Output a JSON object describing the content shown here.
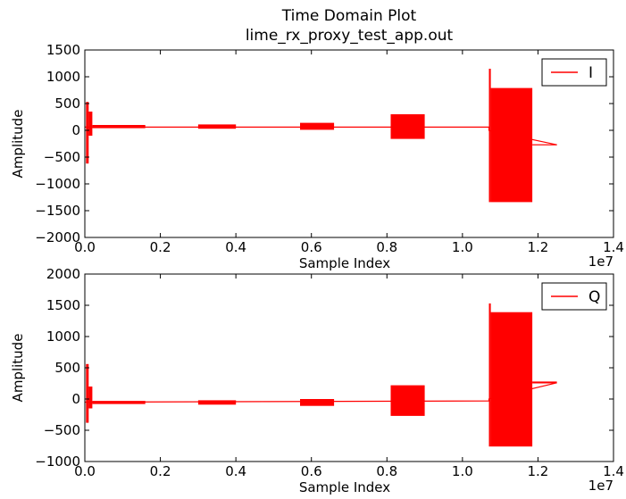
{
  "figure": {
    "title_line1": "Time Domain Plot",
    "title_line2": "lime_rx_proxy_test_app.out"
  },
  "chart_data": [
    {
      "type": "line",
      "title": "Time Domain Plot\nlime_rx_proxy_test_app.out",
      "xlabel": "Sample Index",
      "ylabel": "Amplitude",
      "x_scale_label": "1e7",
      "xlim": [
        0,
        14000000
      ],
      "ylim": [
        -2000,
        1500
      ],
      "xticks": [
        0,
        2000000,
        4000000,
        6000000,
        8000000,
        10000000,
        12000000,
        14000000
      ],
      "xtick_labels": [
        "0.0",
        "0.2",
        "0.4",
        "0.6",
        "0.8",
        "1.0",
        "1.2",
        "1.4"
      ],
      "yticks": [
        -2000,
        -1500,
        -1000,
        -500,
        0,
        500,
        1000,
        1500
      ],
      "ytick_labels": [
        "−2000",
        "−1500",
        "−1000",
        "−500",
        "0",
        "500",
        "1000",
        "1500"
      ],
      "grid": false,
      "legend_position": "top-right",
      "series": [
        {
          "name": "I",
          "color": "#ff0000",
          "baseline": [
            [
              0,
              60
            ],
            [
              10700000,
              60
            ],
            [
              10700000,
              0
            ],
            [
              12500000,
              -270
            ]
          ],
          "bursts": [
            {
              "x_start": 30000,
              "x_end": 100000,
              "y_min": -620,
              "y_max": 530
            },
            {
              "x_start": 100000,
              "x_end": 200000,
              "y_min": -100,
              "y_max": 350
            },
            {
              "x_start": 200000,
              "x_end": 1600000,
              "y_min": 40,
              "y_max": 100
            },
            {
              "x_start": 3000000,
              "x_end": 4000000,
              "y_min": 30,
              "y_max": 110
            },
            {
              "x_start": 5700000,
              "x_end": 6600000,
              "y_min": 10,
              "y_max": 140
            },
            {
              "x_start": 8100000,
              "x_end": 9000000,
              "y_min": -160,
              "y_max": 300
            },
            {
              "x_start": 10700000,
              "x_end": 10750000,
              "y_min": -1340,
              "y_max": 1150
            },
            {
              "x_start": 10750000,
              "x_end": 11850000,
              "y_min": -1340,
              "y_max": 790
            },
            {
              "x_start": 11850000,
              "x_end": 12500000,
              "y_min": -280,
              "y_max": -260
            }
          ]
        }
      ]
    },
    {
      "type": "line",
      "xlabel": "Sample Index",
      "ylabel": "Amplitude",
      "x_scale_label": "1e7",
      "xlim": [
        0,
        14000000
      ],
      "ylim": [
        -1000,
        2000
      ],
      "xticks": [
        0,
        2000000,
        4000000,
        6000000,
        8000000,
        10000000,
        12000000,
        14000000
      ],
      "xtick_labels": [
        "0.0",
        "0.2",
        "0.4",
        "0.6",
        "0.8",
        "1.0",
        "1.2",
        "1.4"
      ],
      "yticks": [
        -1000,
        -500,
        0,
        500,
        1000,
        1500,
        2000
      ],
      "ytick_labels": [
        "−1000",
        "−500",
        "0",
        "500",
        "1000",
        "1500",
        "2000"
      ],
      "grid": false,
      "legend_position": "top-right",
      "series": [
        {
          "name": "Q",
          "color": "#ff0000",
          "baseline": [
            [
              0,
              -50
            ],
            [
              10700000,
              -30
            ],
            [
              10700000,
              0
            ],
            [
              12500000,
              260
            ]
          ],
          "bursts": [
            {
              "x_start": 30000,
              "x_end": 100000,
              "y_min": -380,
              "y_max": 560
            },
            {
              "x_start": 100000,
              "x_end": 200000,
              "y_min": -150,
              "y_max": 200
            },
            {
              "x_start": 200000,
              "x_end": 1600000,
              "y_min": -80,
              "y_max": -30
            },
            {
              "x_start": 3000000,
              "x_end": 4000000,
              "y_min": -90,
              "y_max": -20
            },
            {
              "x_start": 5700000,
              "x_end": 6600000,
              "y_min": -110,
              "y_max": 0
            },
            {
              "x_start": 8100000,
              "x_end": 9000000,
              "y_min": -270,
              "y_max": 220
            },
            {
              "x_start": 10700000,
              "x_end": 10750000,
              "y_min": -760,
              "y_max": 1530
            },
            {
              "x_start": 10750000,
              "x_end": 11850000,
              "y_min": -760,
              "y_max": 1390
            },
            {
              "x_start": 11850000,
              "x_end": 12500000,
              "y_min": 250,
              "y_max": 280
            }
          ]
        }
      ]
    }
  ]
}
